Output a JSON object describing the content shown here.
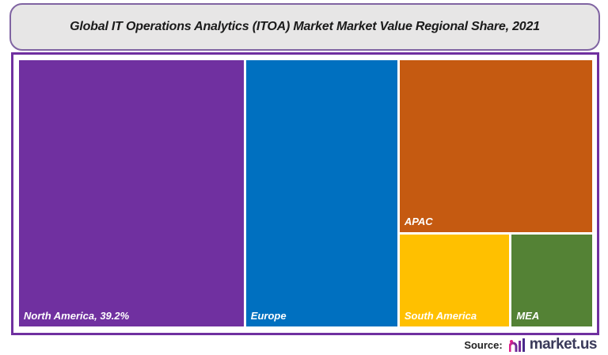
{
  "chart_data": {
    "type": "treemap",
    "title": "Global IT Operations Analytics (ITOA) Market Market Value Regional Share, 2021",
    "unit": "%",
    "items": [
      {
        "name": "North America",
        "label": "North America, 39.2%",
        "value": 39.2,
        "color": "#7030a0"
      },
      {
        "name": "Europe",
        "label": "Europe",
        "value": 26.8,
        "color": "#0070c0"
      },
      {
        "name": "APAC",
        "label": "APAC",
        "value": 22.0,
        "color": "#c55a11"
      },
      {
        "name": "South America",
        "label": "South America",
        "value": 6.9,
        "color": "#ffc000"
      },
      {
        "name": "MEA",
        "label": "MEA",
        "value": 5.1,
        "color": "#548235"
      }
    ]
  },
  "source": {
    "label": "Source:",
    "brand": "market.us"
  }
}
